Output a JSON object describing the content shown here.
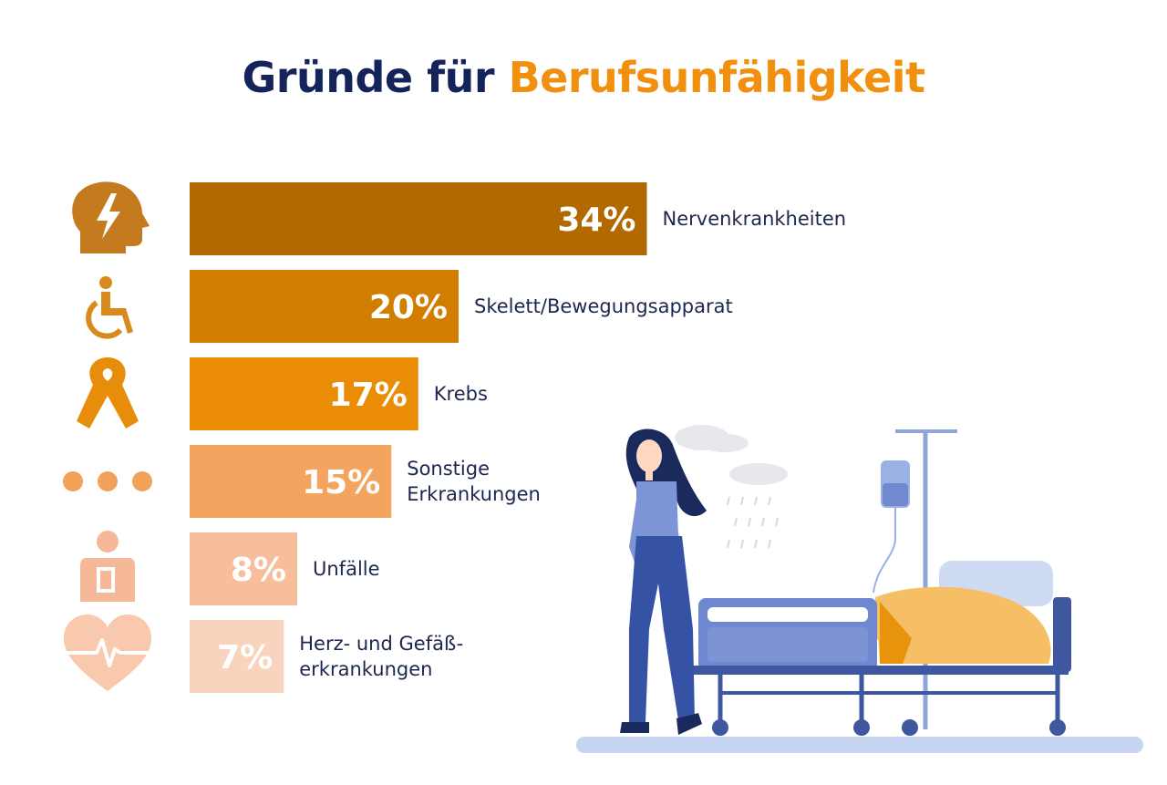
{
  "title": {
    "part1": "Gründe für",
    "part2": "Berufsunfähigkeit"
  },
  "colors": {
    "title_dark": "#14245a",
    "title_accent": "#f0900e",
    "label_text": "#1d2650",
    "bars": [
      "#b26a00",
      "#d17d00",
      "#ea8d05",
      "#f3a45e",
      "#f6be9a",
      "#f8d3bd"
    ]
  },
  "chart_data": {
    "type": "bar",
    "orientation": "horizontal",
    "categories": [
      "Nervenkrankheiten",
      "Skelett/Bewegungsapparat",
      "Krebs",
      "Sonstige Erkrankungen",
      "Unfälle",
      "Herz- und Gefäß-erkrankungen"
    ],
    "values": [
      34,
      20,
      17,
      15,
      8,
      7
    ],
    "value_labels": [
      "34%",
      "20%",
      "17%",
      "15%",
      "8%",
      "7%"
    ],
    "label_lines": [
      [
        "Nervenkrankheiten"
      ],
      [
        "Skelett/Bewegungsapparat"
      ],
      [
        "Krebs"
      ],
      [
        "Sonstige",
        "Erkrankungen"
      ],
      [
        "Unfälle"
      ],
      [
        "Herz- und Gefäß-",
        "erkrankungen"
      ]
    ],
    "icons": [
      "head-lightning-icon",
      "wheelchair-icon",
      "cancer-ribbon-icon",
      "dots-icon",
      "injured-person-icon",
      "heart-pulse-icon"
    ],
    "unit": "%",
    "grid": false,
    "legend": "none"
  }
}
